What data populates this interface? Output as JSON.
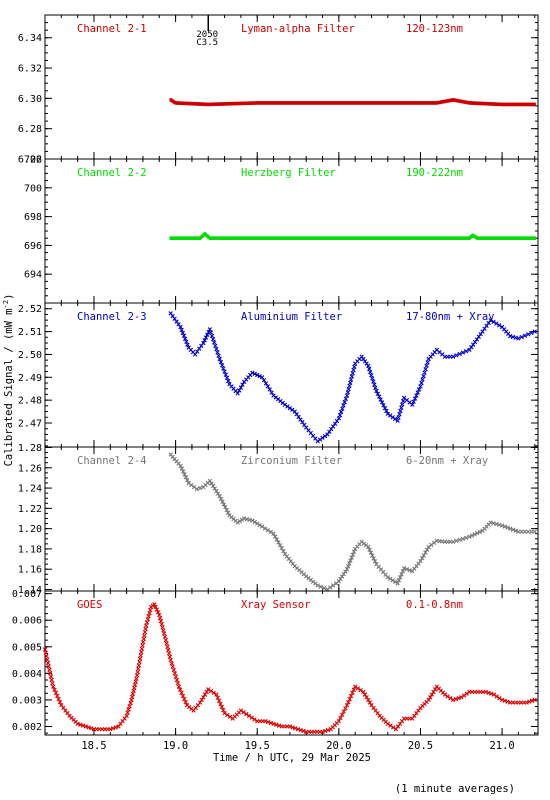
{
  "chart_data": [
    {
      "type": "scatter",
      "channel_label": "Channel 2-1",
      "filter_label": "Lyman-alpha Filter",
      "band_label": "120-123nm",
      "color": "#cc0000",
      "ylim": [
        6.26,
        6.355
      ],
      "yticks": [
        "6.26",
        "6.28",
        "6.30",
        "6.32",
        "6.34"
      ],
      "annotation": {
        "x": 19.2,
        "lines": [
          "2050",
          "C3.5"
        ]
      },
      "series": [
        {
          "x": [
            18.97,
            19.0,
            19.2,
            19.5,
            19.8,
            20.1,
            20.4,
            20.6,
            20.7,
            20.8,
            21.0,
            21.2
          ],
          "y": [
            6.299,
            6.297,
            6.296,
            6.297,
            6.297,
            6.297,
            6.297,
            6.297,
            6.299,
            6.297,
            6.296,
            6.296
          ]
        }
      ]
    },
    {
      "type": "scatter",
      "channel_label": "Channel 2-2",
      "filter_label": "Herzberg Filter",
      "band_label": "190-222nm",
      "color": "#00dd00",
      "ylim": [
        692,
        702
      ],
      "yticks": [
        "694",
        "696",
        "698",
        "700",
        "702"
      ],
      "series": [
        {
          "x": [
            18.97,
            19.15,
            19.18,
            19.21,
            19.5,
            20.0,
            20.5,
            20.8,
            20.82,
            20.85,
            21.2
          ],
          "y": [
            696.5,
            696.5,
            696.8,
            696.5,
            696.5,
            696.5,
            696.5,
            696.5,
            696.7,
            696.5,
            696.5
          ]
        }
      ]
    },
    {
      "type": "scatter",
      "channel_label": "Channel 2-3",
      "filter_label": "Aluminium Filter",
      "band_label": "17-80nm + Xray",
      "color": "#0000cc",
      "ylim": [
        2.4595,
        2.5225
      ],
      "yticks": [
        "2.47",
        "2.48",
        "2.49",
        "2.50",
        "2.51",
        "2.52"
      ],
      "series": [
        {
          "x": [
            18.97,
            19.03,
            19.08,
            19.12,
            19.17,
            19.21,
            19.27,
            19.33,
            19.38,
            19.42,
            19.47,
            19.53,
            19.6,
            19.67,
            19.73,
            19.8,
            19.87,
            19.93,
            20.0,
            20.05,
            20.1,
            20.14,
            20.18,
            20.23,
            20.3,
            20.36,
            20.4,
            20.45,
            20.5,
            20.55,
            20.6,
            20.65,
            20.7,
            20.8,
            20.88,
            20.93,
            21.0,
            21.05,
            21.1,
            21.2
          ],
          "y": [
            2.518,
            2.512,
            2.503,
            2.5,
            2.505,
            2.511,
            2.498,
            2.487,
            2.483,
            2.488,
            2.492,
            2.49,
            2.482,
            2.478,
            2.475,
            2.468,
            2.462,
            2.465,
            2.472,
            2.482,
            2.496,
            2.499,
            2.495,
            2.484,
            2.474,
            2.471,
            2.481,
            2.478,
            2.486,
            2.498,
            2.502,
            2.499,
            2.499,
            2.502,
            2.51,
            2.515,
            2.512,
            2.508,
            2.507,
            2.51
          ]
        }
      ]
    },
    {
      "type": "scatter",
      "channel_label": "Channel 2-4",
      "filter_label": "Zirconium Filter",
      "band_label": "6-20nm + Xray",
      "color": "#777777",
      "ylim": [
        1.1385,
        1.2805
      ],
      "yticks": [
        "1.14",
        "1.16",
        "1.18",
        "1.20",
        "1.22",
        "1.24",
        "1.26",
        "1.28"
      ],
      "series": [
        {
          "x": [
            18.97,
            19.03,
            19.08,
            19.13,
            19.17,
            19.21,
            19.27,
            19.33,
            19.38,
            19.42,
            19.47,
            19.53,
            19.6,
            19.67,
            19.73,
            19.8,
            19.87,
            19.93,
            20.0,
            20.05,
            20.1,
            20.14,
            20.18,
            20.23,
            20.3,
            20.36,
            20.4,
            20.45,
            20.5,
            20.55,
            20.6,
            20.65,
            20.7,
            20.8,
            20.88,
            20.93,
            21.0,
            21.05,
            21.1,
            21.2
          ],
          "y": [
            1.273,
            1.262,
            1.245,
            1.239,
            1.241,
            1.247,
            1.232,
            1.213,
            1.206,
            1.21,
            1.208,
            1.202,
            1.195,
            1.175,
            1.163,
            1.153,
            1.144,
            1.14,
            1.148,
            1.16,
            1.18,
            1.187,
            1.182,
            1.165,
            1.152,
            1.146,
            1.161,
            1.158,
            1.168,
            1.182,
            1.188,
            1.187,
            1.187,
            1.192,
            1.198,
            1.206,
            1.203,
            1.2,
            1.197,
            1.197
          ]
        }
      ]
    },
    {
      "type": "scatter",
      "channel_label": "GOES",
      "filter_label": "Xray Sensor",
      "band_label": "0.1-0.8nm",
      "color": "#dd0000",
      "ylim": [
        0.00168,
        0.0071
      ],
      "yticks": [
        "0.002",
        "0.003",
        "0.004",
        "0.005",
        "0.006",
        "0.007"
      ],
      "series": [
        {
          "x": [
            18.2,
            18.25,
            18.3,
            18.35,
            18.4,
            18.45,
            18.5,
            18.55,
            18.6,
            18.65,
            18.7,
            18.73,
            18.76,
            18.79,
            18.82,
            18.85,
            18.87,
            18.9,
            18.93,
            18.97,
            19.02,
            19.07,
            19.11,
            19.15,
            19.2,
            19.25,
            19.3,
            19.35,
            19.4,
            19.45,
            19.5,
            19.55,
            19.6,
            19.65,
            19.7,
            19.75,
            19.8,
            19.85,
            19.9,
            19.95,
            20.0,
            20.05,
            20.1,
            20.15,
            20.2,
            20.25,
            20.3,
            20.35,
            20.4,
            20.45,
            20.5,
            20.55,
            20.6,
            20.65,
            20.7,
            20.75,
            20.8,
            20.85,
            20.9,
            20.95,
            21.0,
            21.05,
            21.1,
            21.15,
            21.2
          ],
          "y": [
            0.0049,
            0.0035,
            0.0028,
            0.0024,
            0.0021,
            0.002,
            0.0019,
            0.0019,
            0.0019,
            0.002,
            0.0024,
            0.003,
            0.0038,
            0.0048,
            0.0058,
            0.0065,
            0.0066,
            0.0062,
            0.0055,
            0.0045,
            0.0035,
            0.0028,
            0.0026,
            0.0029,
            0.0034,
            0.0032,
            0.0025,
            0.0023,
            0.0026,
            0.0024,
            0.0022,
            0.0022,
            0.0021,
            0.002,
            0.002,
            0.0019,
            0.0018,
            0.0018,
            0.0018,
            0.0019,
            0.0022,
            0.0028,
            0.0035,
            0.0033,
            0.0028,
            0.0024,
            0.0021,
            0.0019,
            0.0023,
            0.0023,
            0.0027,
            0.003,
            0.0035,
            0.0032,
            0.003,
            0.0031,
            0.0033,
            0.0033,
            0.0033,
            0.0032,
            0.003,
            0.0029,
            0.0029,
            0.0029,
            0.003
          ]
        }
      ]
    }
  ],
  "axes": {
    "xlim": [
      18.2,
      21.22
    ],
    "xticks": [
      "18.5",
      "19.0",
      "19.5",
      "20.0",
      "20.5",
      "21.0"
    ],
    "xlabel": "Time / h UTC, 29 Mar 2025",
    "ylabel_prefix": "Calibrated Signal / (mW m",
    "ylabel_exponent": "-2",
    "ylabel_suffix": ")"
  },
  "footnote": "(1 minute averages)"
}
